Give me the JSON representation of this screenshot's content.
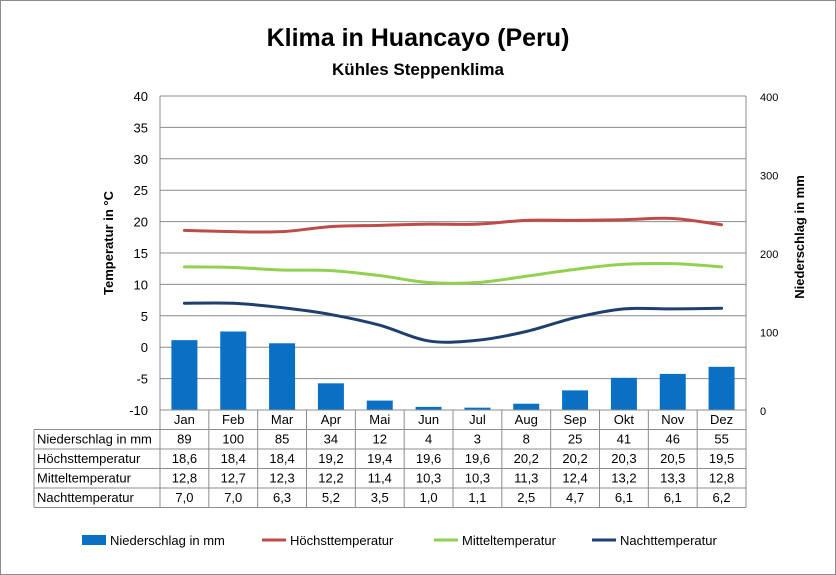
{
  "chart_data": {
    "type": "bar",
    "title": "Klima in Huancayo (Peru)",
    "subtitle": "Kühles Steppenklima",
    "categories": [
      "Jan",
      "Feb",
      "Mar",
      "Apr",
      "Mai",
      "Jun",
      "Jul",
      "Aug",
      "Sep",
      "Okt",
      "Nov",
      "Dez"
    ],
    "y_left": {
      "label": "Temperatur in °C",
      "min": -10,
      "max": 40,
      "step": 5,
      "ticks": [
        "-10",
        "-5",
        "0",
        "5",
        "10",
        "15",
        "20",
        "25",
        "30",
        "35",
        "40"
      ]
    },
    "y_right": {
      "label": "Niederschlag in mm",
      "min": 0,
      "max": 400,
      "step": 100,
      "ticks": [
        "0",
        "100",
        "200",
        "300",
        "400"
      ]
    },
    "grid": true,
    "legend_position": "bottom",
    "series": [
      {
        "name": "Niederschlag in mm",
        "type": "bar",
        "axis": "right",
        "color": "#0a70c4",
        "values": [
          89,
          100,
          85,
          34,
          12,
          4,
          3,
          8,
          25,
          41,
          46,
          55
        ],
        "labels": [
          "89",
          "100",
          "85",
          "34",
          "12",
          "4",
          "3",
          "8",
          "25",
          "41",
          "46",
          "55"
        ]
      },
      {
        "name": "Höchsttemperatur",
        "type": "line",
        "axis": "left",
        "color": "#be4b48",
        "values": [
          18.6,
          18.4,
          18.4,
          19.2,
          19.4,
          19.6,
          19.6,
          20.2,
          20.2,
          20.3,
          20.5,
          19.5
        ],
        "labels": [
          "18,6",
          "18,4",
          "18,4",
          "19,2",
          "19,4",
          "19,6",
          "19,6",
          "20,2",
          "20,2",
          "20,3",
          "20,5",
          "19,5"
        ]
      },
      {
        "name": "Mitteltemperatur",
        "type": "line",
        "axis": "left",
        "color": "#92d050",
        "values": [
          12.8,
          12.7,
          12.3,
          12.2,
          11.4,
          10.3,
          10.3,
          11.3,
          12.4,
          13.2,
          13.3,
          12.8
        ],
        "labels": [
          "12,8",
          "12,7",
          "12,3",
          "12,2",
          "11,4",
          "10,3",
          "10,3",
          "11,3",
          "12,4",
          "13,2",
          "13,3",
          "12,8"
        ]
      },
      {
        "name": "Nachttemperatur",
        "type": "line",
        "axis": "left",
        "color": "#1f3f6e",
        "values": [
          7.0,
          7.0,
          6.3,
          5.2,
          3.5,
          1.0,
          1.1,
          2.5,
          4.7,
          6.1,
          6.1,
          6.2
        ],
        "labels": [
          "7,0",
          "7,0",
          "6,3",
          "5,2",
          "3,5",
          "1,0",
          "1,1",
          "2,5",
          "4,7",
          "6,1",
          "6,1",
          "6,2"
        ]
      }
    ]
  }
}
